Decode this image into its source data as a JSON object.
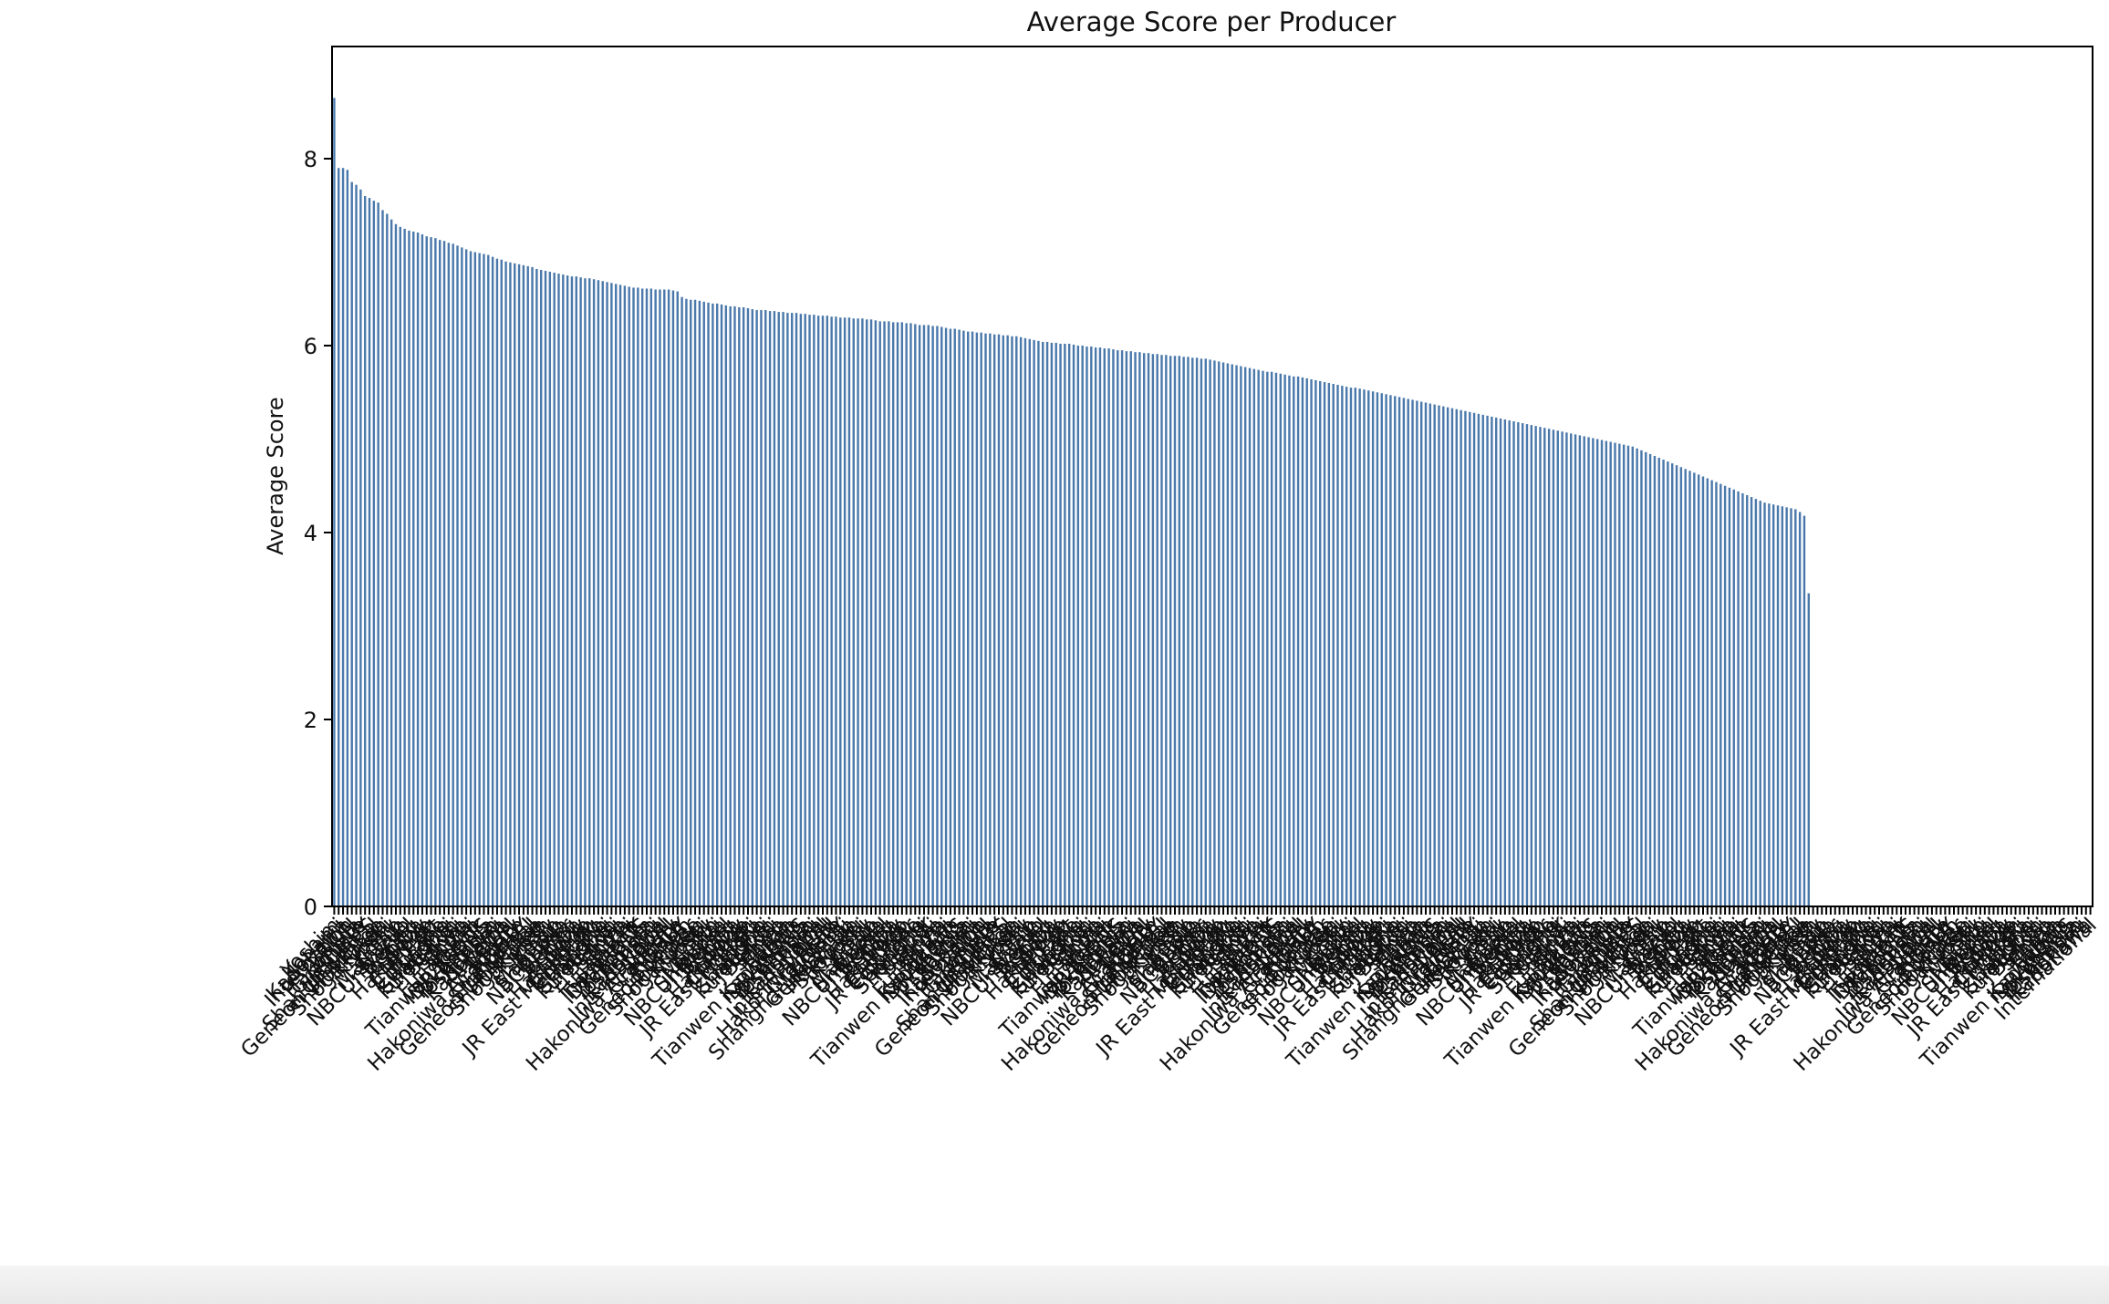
{
  "chart_data": {
    "type": "bar",
    "title": "Average Score per Producer",
    "xlabel": "",
    "ylabel": "Average Score",
    "ylim": [
      0,
      9.2
    ],
    "yticks": [
      0,
      2,
      4,
      6,
      8
    ],
    "bar_color": "#4a78ab",
    "grid": false,
    "legend": "none",
    "num_bars": 400,
    "num_plotted_bars": 330,
    "visible_category_labels": [
      "Yoshimoto",
      "Konami",
      "Kadokawa",
      "International",
      "VOON",
      "Hakoniwa Academy",
      "Graduate",
      "HOBBY",
      "Shanghai Jiu Studio",
      "Geneon Universal",
      "Hokkaido",
      "Shogakukan",
      "Kiyoshi",
      "Sky",
      "Kojiro",
      "Maintain",
      "Shizuoka",
      "NBCUniversal",
      "Beijing",
      "Toshiba",
      "Sony",
      "Hakuhodo",
      "Children",
      "JR East Marketing",
      "Colorado",
      "Gungho",
      "Shanghai",
      "Kujou-Kun",
      "Bandai",
      "Sanyo",
      "China",
      "Fujian Zhi",
      "Japan",
      "Tianwen Kadokawa",
      "iDRAGONS",
      "Yokohama"
    ],
    "values": [
      8.65,
      7.9,
      7.9,
      7.88,
      7.75,
      7.72,
      7.67,
      7.6,
      7.58,
      7.55,
      7.53,
      7.45,
      7.41,
      7.35,
      7.3,
      7.27,
      7.25,
      7.23,
      7.22,
      7.21,
      7.19,
      7.17,
      7.16,
      7.15,
      7.13,
      7.12,
      7.1,
      7.09,
      7.07,
      7.05,
      7.03,
      7.01,
      7.0,
      6.99,
      6.98,
      6.97,
      6.95,
      6.93,
      6.92,
      6.9,
      6.89,
      6.88,
      6.87,
      6.86,
      6.85,
      6.84,
      6.82,
      6.81,
      6.8,
      6.79,
      6.78,
      6.77,
      6.76,
      6.75,
      6.74,
      6.74,
      6.73,
      6.72,
      6.72,
      6.71,
      6.7,
      6.69,
      6.68,
      6.67,
      6.66,
      6.65,
      6.64,
      6.63,
      6.62,
      6.62,
      6.61,
      6.61,
      6.61,
      6.6,
      6.6,
      6.6,
      6.6,
      6.59,
      6.58,
      6.52,
      6.5,
      6.49,
      6.49,
      6.48,
      6.47,
      6.46,
      6.45,
      6.45,
      6.44,
      6.43,
      6.42,
      6.42,
      6.41,
      6.41,
      6.4,
      6.39,
      6.38,
      6.38,
      6.38,
      6.37,
      6.37,
      6.36,
      6.36,
      6.35,
      6.35,
      6.35,
      6.34,
      6.34,
      6.33,
      6.33,
      6.32,
      6.32,
      6.32,
      6.31,
      6.31,
      6.3,
      6.3,
      6.3,
      6.29,
      6.29,
      6.29,
      6.28,
      6.28,
      6.27,
      6.26,
      6.26,
      6.26,
      6.25,
      6.25,
      6.25,
      6.24,
      6.24,
      6.23,
      6.22,
      6.22,
      6.22,
      6.21,
      6.21,
      6.2,
      6.19,
      6.18,
      6.18,
      6.17,
      6.16,
      6.15,
      6.15,
      6.14,
      6.14,
      6.13,
      6.13,
      6.12,
      6.12,
      6.11,
      6.11,
      6.1,
      6.1,
      6.09,
      6.08,
      6.07,
      6.06,
      6.05,
      6.04,
      6.04,
      6.03,
      6.03,
      6.02,
      6.02,
      6.02,
      6.01,
      6.0,
      6.0,
      5.99,
      5.99,
      5.98,
      5.98,
      5.97,
      5.97,
      5.96,
      5.95,
      5.95,
      5.94,
      5.94,
      5.93,
      5.93,
      5.92,
      5.92,
      5.91,
      5.91,
      5.9,
      5.9,
      5.89,
      5.89,
      5.89,
      5.88,
      5.88,
      5.87,
      5.87,
      5.86,
      5.86,
      5.85,
      5.84,
      5.83,
      5.82,
      5.81,
      5.8,
      5.79,
      5.78,
      5.77,
      5.76,
      5.75,
      5.74,
      5.73,
      5.72,
      5.72,
      5.71,
      5.7,
      5.69,
      5.68,
      5.67,
      5.67,
      5.66,
      5.65,
      5.64,
      5.63,
      5.62,
      5.61,
      5.6,
      5.59,
      5.58,
      5.57,
      5.56,
      5.55,
      5.55,
      5.54,
      5.53,
      5.52,
      5.51,
      5.5,
      5.49,
      5.48,
      5.47,
      5.46,
      5.45,
      5.44,
      5.43,
      5.42,
      5.41,
      5.4,
      5.39,
      5.38,
      5.37,
      5.36,
      5.35,
      5.34,
      5.33,
      5.32,
      5.31,
      5.3,
      5.29,
      5.28,
      5.27,
      5.26,
      5.25,
      5.24,
      5.23,
      5.22,
      5.21,
      5.2,
      5.19,
      5.18,
      5.17,
      5.16,
      5.15,
      5.14,
      5.13,
      5.12,
      5.11,
      5.1,
      5.09,
      5.08,
      5.07,
      5.06,
      5.05,
      5.04,
      5.03,
      5.02,
      5.01,
      5.0,
      4.99,
      4.98,
      4.97,
      4.96,
      4.95,
      4.94,
      4.93,
      4.92,
      4.9,
      4.88,
      4.86,
      4.84,
      4.82,
      4.8,
      4.78,
      4.76,
      4.74,
      4.72,
      4.7,
      4.68,
      4.66,
      4.64,
      4.62,
      4.6,
      4.58,
      4.56,
      4.54,
      4.52,
      4.5,
      4.48,
      4.46,
      4.44,
      4.42,
      4.4,
      4.38,
      4.36,
      4.34,
      4.32,
      4.31,
      4.3,
      4.29,
      4.28,
      4.27,
      4.26,
      4.25,
      4.22,
      4.18,
      3.35
    ]
  }
}
